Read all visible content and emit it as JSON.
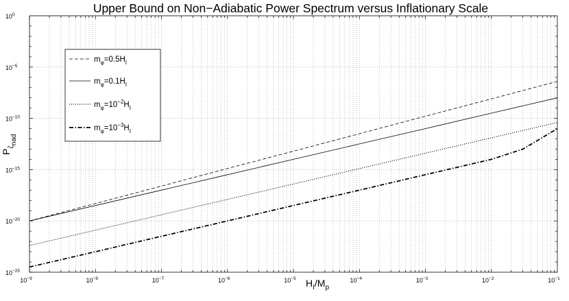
{
  "chart_data": {
    "type": "line",
    "title": "Upper Bound on Non−Adiabatic Power Spectrum versus Inflationary Scale",
    "xlabel": {
      "base": "H",
      "sub": "I",
      "rest": "/M",
      "sub2": "p"
    },
    "ylabel": {
      "base": "P",
      "sub": "ζ",
      "subsub": "nad"
    },
    "xscale": "log",
    "yscale": "log",
    "xlim": [
      1e-09,
      0.1
    ],
    "ylim": [
      1e-25,
      1
    ],
    "grid": true,
    "legend_position": "upper-left",
    "x_ticks": [
      {
        "base": "10",
        "exp": "−9",
        "value": 1e-09
      },
      {
        "base": "10",
        "exp": "−8",
        "value": 1e-08
      },
      {
        "base": "10",
        "exp": "−7",
        "value": 1e-07
      },
      {
        "base": "10",
        "exp": "−6",
        "value": 1e-06
      },
      {
        "base": "10",
        "exp": "−5",
        "value": 1e-05
      },
      {
        "base": "10",
        "exp": "−4",
        "value": 0.0001
      },
      {
        "base": "10",
        "exp": "−3",
        "value": 0.001
      },
      {
        "base": "10",
        "exp": "−2",
        "value": 0.01
      },
      {
        "base": "10",
        "exp": "−1",
        "value": 0.1
      }
    ],
    "y_ticks": [
      {
        "base": "10",
        "exp": "0",
        "value": 1
      },
      {
        "base": "10",
        "exp": "−5",
        "value": 1e-05
      },
      {
        "base": "10",
        "exp": "−10",
        "value": 1e-10
      },
      {
        "base": "10",
        "exp": "−15",
        "value": 1e-15
      },
      {
        "base": "10",
        "exp": "−20",
        "value": 1e-20
      },
      {
        "base": "10",
        "exp": "−25",
        "value": 1e-25
      }
    ],
    "series": [
      {
        "name": "mφ=0.5HI",
        "legend": {
          "pre": "m",
          "sub": "φ",
          "mid": "=0.5H",
          "sup": "",
          "sub2": "I"
        },
        "style": "dashed",
        "color": "#000000",
        "x": [
          1e-09,
          1e-08,
          1e-07,
          1e-06,
          1e-05,
          0.0001,
          0.001,
          0.01,
          0.1
        ],
        "y": [
          1e-20,
          5e-19,
          2.5e-17,
          1.3e-15,
          6.3e-14,
          3.2e-12,
          1.6e-10,
          7.9e-09,
          4e-07
        ]
      },
      {
        "name": "mφ=0.1HI",
        "legend": {
          "pre": "m",
          "sub": "φ",
          "mid": "=0.1H",
          "sup": "",
          "sub2": "I"
        },
        "style": "solid",
        "color": "#000000",
        "x": [
          1e-09,
          1e-08,
          1e-07,
          1e-06,
          1e-05,
          0.0001,
          0.001,
          0.01,
          0.1
        ],
        "y": [
          1e-20,
          3.2e-19,
          1e-17,
          3.2e-16,
          1e-14,
          3.2e-13,
          1e-11,
          3.2e-10,
          1e-08
        ]
      },
      {
        "name": "mφ=10−2HI",
        "legend": {
          "pre": "m",
          "sub": "φ",
          "mid": "=10",
          "sup": "−2",
          "mid2": "H",
          "sub2": "I"
        },
        "style": "dotted",
        "color": "#000000",
        "x": [
          1e-09,
          1e-08,
          1e-07,
          1e-06,
          1e-05,
          0.0001,
          0.001,
          0.01,
          0.1
        ],
        "y": [
          4e-23,
          1.26e-21,
          4e-20,
          1.26e-18,
          4e-17,
          1.26e-15,
          4e-14,
          1.26e-12,
          4e-11
        ]
      },
      {
        "name": "mφ=10−3HI",
        "legend": {
          "pre": "m",
          "sub": "φ",
          "mid": "=10",
          "sup": "−3",
          "mid2": "H",
          "sub2": "I"
        },
        "style": "dashdot",
        "color": "#000000",
        "x": [
          1e-09,
          1e-08,
          1e-07,
          1e-06,
          1e-05,
          0.0001,
          0.001,
          0.01,
          0.03,
          0.1
        ],
        "y": [
          3.2e-25,
          1e-23,
          3.2e-22,
          1e-20,
          3.2e-19,
          1e-17,
          3.2e-16,
          1e-14,
          1e-13,
          1e-11
        ]
      }
    ]
  }
}
